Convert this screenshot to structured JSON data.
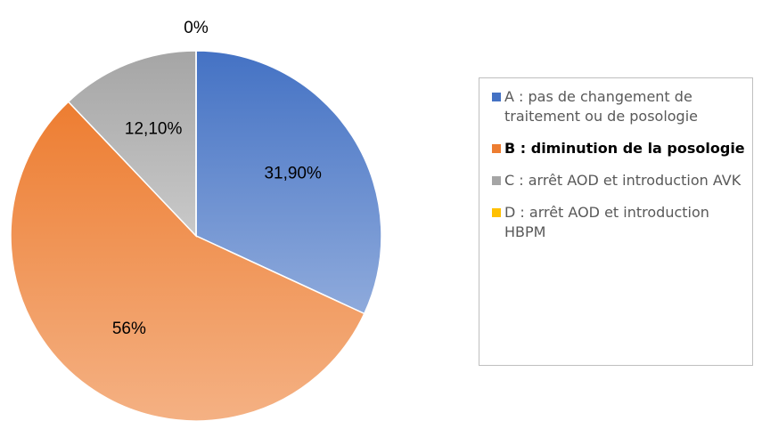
{
  "chart_data": {
    "type": "pie",
    "categories": [
      "A : pas de changement de traitement ou de posologie",
      "B : diminution de la posologie",
      "C : arrêt AOD et introduction AVK",
      "D : arrêt AOD et introduction HBPM"
    ],
    "values": [
      31.9,
      56,
      12.1,
      0
    ],
    "value_labels": [
      "31,90%",
      "56%",
      "12,10%",
      "0%"
    ],
    "colors": [
      "#4472c4",
      "#ed7d31",
      "#a5a5a5",
      "#ffc000"
    ],
    "legend": "right"
  }
}
